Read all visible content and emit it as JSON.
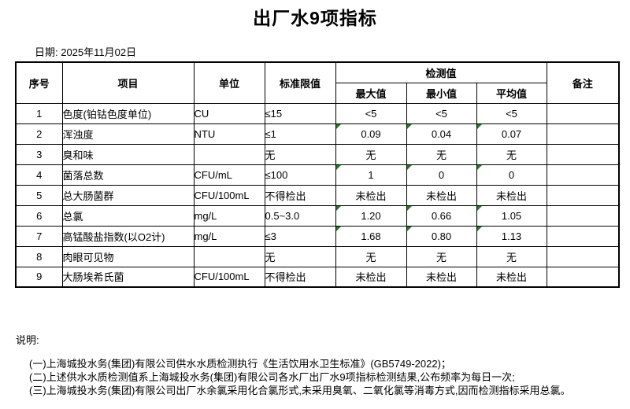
{
  "title": "出厂水9项指标",
  "date_label": "日期: 2025年11月02日",
  "table": {
    "headers": {
      "no": "序号",
      "item": "项目",
      "unit": "单位",
      "limit": "标准限值",
      "detect_group": "检测值",
      "max": "最大值",
      "min": "最小值",
      "avg": "平均值",
      "remark": "备注"
    },
    "rows": [
      {
        "no": "1",
        "item": "色度(铂钴色度单位)",
        "unit": "CU",
        "limit": "≤15",
        "max": "<5",
        "min": "<5",
        "avg": "<5",
        "remark": "",
        "flagged": false
      },
      {
        "no": "2",
        "item": "浑浊度",
        "unit": "NTU",
        "limit": "≤1",
        "max": "0.09",
        "min": "0.04",
        "avg": "0.07",
        "remark": "",
        "flagged": true
      },
      {
        "no": "3",
        "item": "臭和味",
        "unit": "",
        "limit": "无",
        "max": "无",
        "min": "无",
        "avg": "无",
        "remark": "",
        "flagged": false
      },
      {
        "no": "4",
        "item": "菌落总数",
        "unit": "CFU/mL",
        "limit": "≤100",
        "max": "1",
        "min": "0",
        "avg": "0",
        "remark": "",
        "flagged": true
      },
      {
        "no": "5",
        "item": "总大肠菌群",
        "unit": "CFU/100mL",
        "limit": "不得检出",
        "max": "未检出",
        "min": "未检出",
        "avg": "未检出",
        "remark": "",
        "flagged": false
      },
      {
        "no": "6",
        "item": "总氯",
        "unit": "mg/L",
        "limit": "0.5~3.0",
        "max": "1.20",
        "min": "0.66",
        "avg": "1.05",
        "remark": "",
        "flagged": true
      },
      {
        "no": "7",
        "item": "高锰酸盐指数(以O2计)",
        "unit": "mg/L",
        "limit": "≤3",
        "max": "1.68",
        "min": "0.80",
        "avg": "1.13",
        "remark": "",
        "flagged": true
      },
      {
        "no": "8",
        "item": "肉眼可见物",
        "unit": "",
        "limit": "无",
        "max": "无",
        "min": "无",
        "avg": "无",
        "remark": "",
        "flagged": false
      },
      {
        "no": "9",
        "item": "大肠埃希氏菌",
        "unit": "CFU/100mL",
        "limit": "不得检出",
        "max": "未检出",
        "min": "未检出",
        "avg": "未检出",
        "remark": "",
        "flagged": false
      }
    ]
  },
  "notes": {
    "label": "说明:",
    "items": [
      "(一)上海城投水务(集团)有限公司供水水质检测执行《生活饮用水卫生标准》(GB5749-2022)；",
      "(二)上述供水水质检测值系上海城投水务(集团)有限公司各水厂出厂水9项指标检测结果,公布频率为每日一次;",
      "(三)上海城投水务(集团)有限公司出厂水余氯采用化合氯形式,未采用臭氧、二氧化氯等消毒方式,因而检测指标采用总氯。"
    ]
  },
  "colors": {
    "flag_triangle": "#1E7B1E",
    "border": "#000000"
  }
}
